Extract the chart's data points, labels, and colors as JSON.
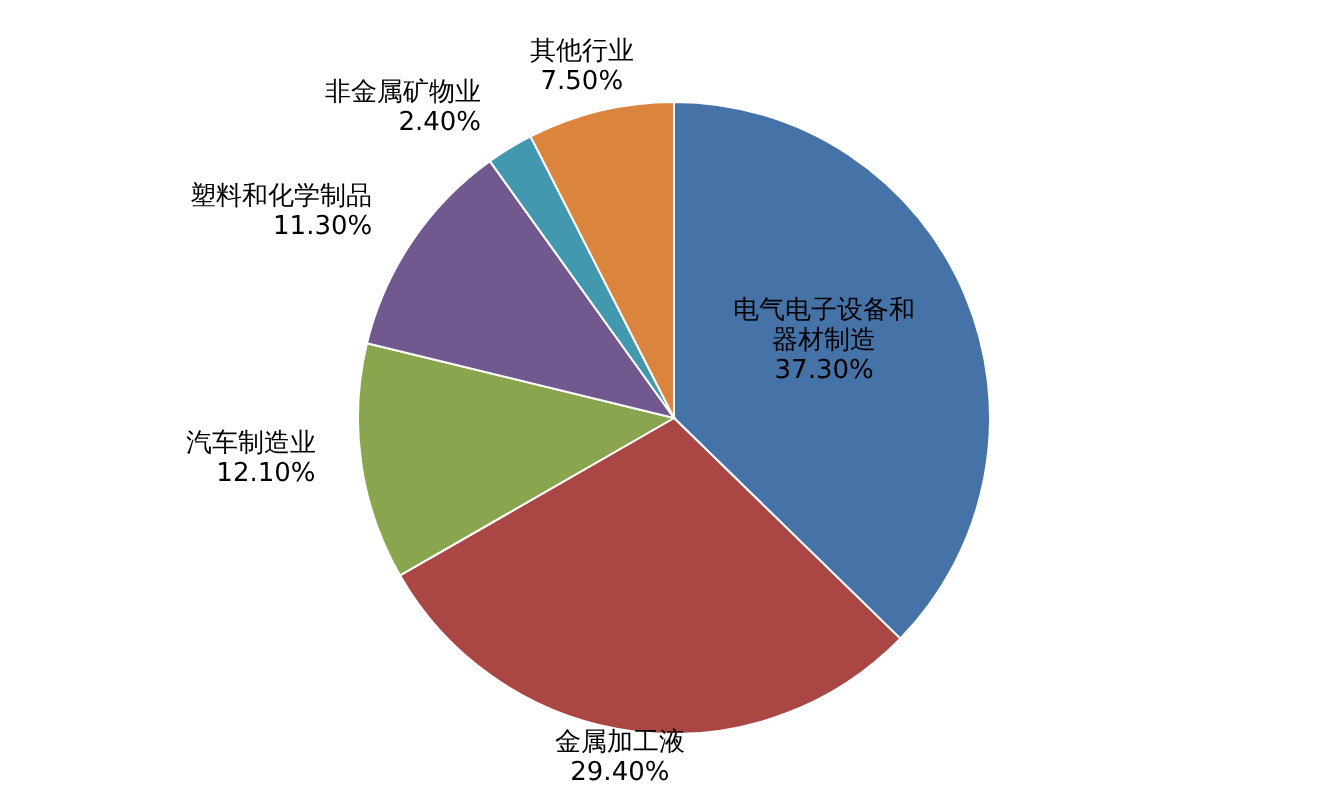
{
  "chart_data": {
    "type": "pie",
    "categories": [
      "电气电子设备和器材制造",
      "金属加工液",
      "汽车制造业",
      "塑料和化学制品",
      "非金属矿物业",
      "其他行业"
    ],
    "values": [
      37.3,
      29.4,
      12.1,
      11.3,
      2.4,
      7.5
    ],
    "value_labels": [
      "37.30%",
      "29.40%",
      "12.10%",
      "11.30%",
      "2.40%",
      "7.50%"
    ],
    "colors": [
      "#4572a7",
      "#aa4643",
      "#89a54e",
      "#71588f",
      "#4198af",
      "#db843d"
    ],
    "legend": false
  }
}
